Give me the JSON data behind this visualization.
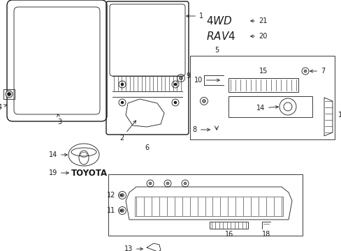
{
  "bg_color": "#ffffff",
  "line_color": "#1a1a1a",
  "fig_width": 4.89,
  "fig_height": 3.6,
  "dpi": 100,
  "lw_main": 1.0,
  "lw_thin": 0.6,
  "lw_xtra": 0.4
}
